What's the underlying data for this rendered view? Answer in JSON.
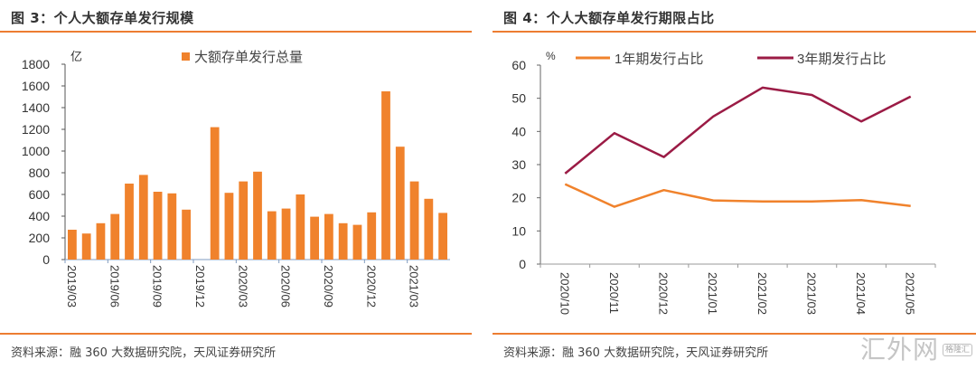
{
  "panels": [
    {
      "title": "图 3：个人大额存单发行规模",
      "source": "资料来源：融 360 大数据研究院，天风证券研究所"
    },
    {
      "title": "图 4：个人大额存单发行期限占比",
      "source": "资料来源：融 360 大数据研究院，天风证券研究所"
    }
  ],
  "watermark": {
    "text": "汇外网",
    "badge": "格隆汇"
  },
  "colors": {
    "accent": "#ED7D31",
    "bar": "#F0822C",
    "line1": "#F0822C",
    "line3": "#9B1B45",
    "axis": "#8C8C8C"
  },
  "chart_data": [
    {
      "type": "bar",
      "title": "图 3：个人大额存单发行规模",
      "ylabel": "亿",
      "ylim": [
        0,
        1800
      ],
      "yticks": [
        "0",
        "200",
        "400",
        "600",
        "800",
        "1000",
        "1200",
        "1400",
        "1600",
        "1800"
      ],
      "ytick_values": [
        0,
        200,
        400,
        600,
        800,
        1000,
        1200,
        1400,
        1600,
        1800
      ],
      "xtick_labels": [
        "2019/03",
        "2019/06",
        "2019/09",
        "2019/12",
        "2020/03",
        "2020/06",
        "2020/09",
        "2020/12",
        "2021/03"
      ],
      "xtick_indices": [
        0,
        3,
        6,
        9,
        12,
        15,
        18,
        21,
        24
      ],
      "categories": [
        "2019/03",
        "2019/04",
        "2019/05",
        "2019/06",
        "2019/07",
        "2019/08",
        "2019/09",
        "2019/10",
        "2019/11",
        "2019/12",
        "2020/01",
        "2020/02",
        "2020/03",
        "2020/04",
        "2020/05",
        "2020/06",
        "2020/07",
        "2020/08",
        "2020/09",
        "2020/10",
        "2020/11",
        "2020/12",
        "2021/01",
        "2021/02",
        "2021/03",
        "2021/04",
        "2021/05"
      ],
      "legend": [
        "大额存单发行总量"
      ],
      "legend_position": "top-center",
      "series": [
        {
          "name": "大额存单发行总量",
          "values": [
            275,
            240,
            335,
            420,
            700,
            780,
            625,
            610,
            460,
            0,
            1220,
            615,
            720,
            810,
            445,
            470,
            600,
            395,
            420,
            335,
            320,
            435,
            1550,
            1040,
            720,
            560,
            430
          ]
        }
      ],
      "grid": false
    },
    {
      "type": "line",
      "title": "图 4：个人大额存单发行期限占比",
      "ylabel": "%",
      "ylim": [
        0,
        60
      ],
      "yticks": [
        "0",
        "10",
        "20",
        "30",
        "40",
        "50",
        "60"
      ],
      "ytick_values": [
        0,
        10,
        20,
        30,
        40,
        50,
        60
      ],
      "categories": [
        "2020/10",
        "2020/11",
        "2020/12",
        "2021/01",
        "2021/02",
        "2021/03",
        "2021/04",
        "2021/05"
      ],
      "legend": [
        "1年期发行占比",
        "3年期发行占比"
      ],
      "legend_position": "top",
      "series": [
        {
          "name": "1年期发行占比",
          "values": [
            24.1,
            17.3,
            22.3,
            19.2,
            18.9,
            18.9,
            19.3,
            17.5
          ]
        },
        {
          "name": "3年期发行占比",
          "values": [
            27.3,
            39.5,
            32.3,
            44.5,
            53.2,
            51.0,
            43.0,
            50.5
          ]
        }
      ],
      "grid": false
    }
  ]
}
